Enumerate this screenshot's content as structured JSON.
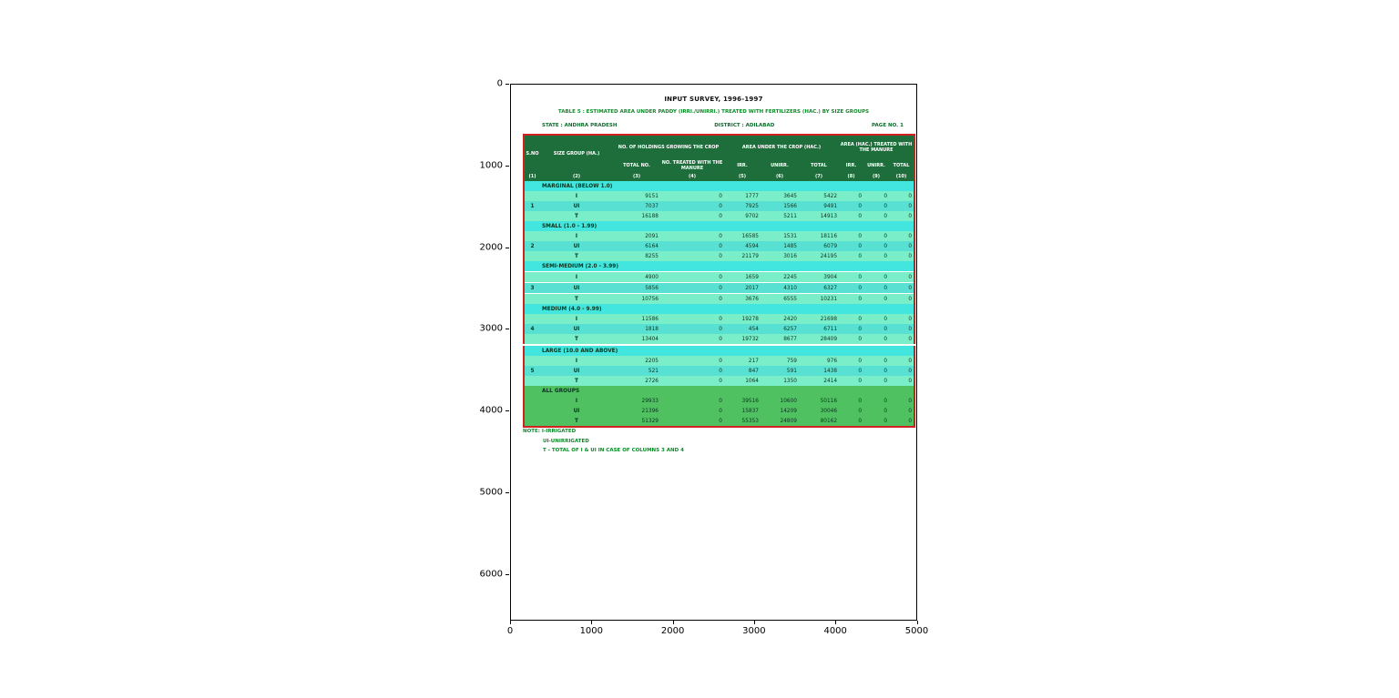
{
  "figure": {
    "x_ticks": [
      "0",
      "1000",
      "2000",
      "3000",
      "4000",
      "5000"
    ],
    "y_ticks": [
      "0",
      "1000",
      "2000",
      "3000",
      "4000",
      "5000",
      "6000"
    ]
  },
  "document": {
    "title": "INPUT SURVEY, 1996-1997",
    "subtitle": "TABLE 5 : ESTIMATED AREA UNDER PADDY (IRRI./UNIRRI.) TREATED WITH FERTILIZERS (HAC.) BY SIZE GROUPS",
    "state_label": "STATE : ANDHRA PRADESH",
    "district_label": "DISTRICT : ADILABAD",
    "page_label": "PAGE NO. 1",
    "notes": [
      "NOTE: I-IRRIGATED",
      "UI-UNIRRIGATED",
      "T - TOTAL OF I & UI IN CASE OF COLUMNS 3 AND 4"
    ]
  },
  "table": {
    "header": {
      "sno": "S.NO",
      "size_group": "SIZE GROUP (HA.)",
      "holdings_group": "NO. OF HOLDINGS GROWING THE CROP",
      "total_no": "TOTAL NO.",
      "treated_no": "NO. TREATED WITH THE MANURE",
      "area_group": "AREA UNDER THE CROP (HAC.)",
      "fert_group": "AREA (HAC.) TREATED WITH THE MANURE",
      "irr": "IRR.",
      "unirr": "UNIRR.",
      "total": "TOTAL"
    },
    "column_numbers": [
      "(1)",
      "(2)",
      "(3)",
      "(4)",
      "(5)",
      "(6)",
      "(7)",
      "(8)",
      "(9)",
      "(10)"
    ],
    "groups": [
      {
        "sno": "1",
        "label": "MARGINAL (BELOW 1.0)",
        "rows": [
          {
            "label": "I",
            "values": [
              "9151",
              "0",
              "1777",
              "3645",
              "5422",
              "0",
              "0",
              "0"
            ]
          },
          {
            "label": "UI",
            "values": [
              "7037",
              "0",
              "7925",
              "1566",
              "9491",
              "0",
              "0",
              "0"
            ]
          },
          {
            "label": "T",
            "values": [
              "16188",
              "0",
              "9702",
              "5211",
              "14913",
              "0",
              "0",
              "0"
            ]
          }
        ]
      },
      {
        "sno": "2",
        "label": "SMALL (1.0 - 1.99)",
        "rows": [
          {
            "label": "I",
            "values": [
              "2091",
              "0",
              "16585",
              "1531",
              "18116",
              "0",
              "0",
              "0"
            ]
          },
          {
            "label": "UI",
            "values": [
              "6164",
              "0",
              "4594",
              "1485",
              "6079",
              "0",
              "0",
              "0"
            ]
          },
          {
            "label": "T",
            "values": [
              "8255",
              "0",
              "21179",
              "3016",
              "24195",
              "0",
              "0",
              "0"
            ]
          }
        ]
      },
      {
        "sno": "3",
        "label": "SEMI-MEDIUM (2.0 - 3.99)",
        "rows": [
          {
            "label": "I",
            "values": [
              "4900",
              "0",
              "1659",
              "2245",
              "3904",
              "0",
              "0",
              "0"
            ]
          },
          {
            "label": "UI",
            "values": [
              "5856",
              "0",
              "2017",
              "4310",
              "6327",
              "0",
              "0",
              "0"
            ]
          },
          {
            "label": "T",
            "values": [
              "10756",
              "0",
              "3676",
              "6555",
              "10231",
              "0",
              "0",
              "0"
            ]
          }
        ]
      },
      {
        "sno": "4",
        "label": "MEDIUM (4.0 - 9.99)",
        "rows": [
          {
            "label": "I",
            "values": [
              "11586",
              "0",
              "19278",
              "2420",
              "21698",
              "0",
              "0",
              "0"
            ]
          },
          {
            "label": "UI",
            "values": [
              "1818",
              "0",
              "454",
              "6257",
              "6711",
              "0",
              "0",
              "0"
            ]
          },
          {
            "label": "T",
            "values": [
              "13404",
              "0",
              "19732",
              "8677",
              "28409",
              "0",
              "0",
              "0"
            ]
          }
        ]
      },
      {
        "sno": "5",
        "label": "LARGE (10.0 AND ABOVE)",
        "rows": [
          {
            "label": "I",
            "values": [
              "2205",
              "0",
              "217",
              "759",
              "976",
              "0",
              "0",
              "0"
            ]
          },
          {
            "label": "UI",
            "values": [
              "521",
              "0",
              "847",
              "591",
              "1438",
              "0",
              "0",
              "0"
            ]
          },
          {
            "label": "T",
            "values": [
              "2726",
              "0",
              "1064",
              "1350",
              "2414",
              "0",
              "0",
              "0"
            ]
          }
        ]
      },
      {
        "sno": "",
        "label": "ALL GROUPS",
        "rows": [
          {
            "label": "I",
            "values": [
              "29933",
              "0",
              "39516",
              "10600",
              "50116",
              "0",
              "0",
              "0"
            ]
          },
          {
            "label": "UI",
            "values": [
              "21396",
              "0",
              "15837",
              "14209",
              "30046",
              "0",
              "0",
              "0"
            ]
          },
          {
            "label": "T",
            "values": [
              "51329",
              "0",
              "55353",
              "24809",
              "80162",
              "0",
              "0",
              "0"
            ]
          }
        ]
      }
    ]
  },
  "colors": {
    "header_green": "#1e6e3c",
    "group_row_cyan": "#43e6de",
    "stripe_a": "#7aeec9",
    "stripe_b": "#58e1d3",
    "all_groups_green": "#50c160",
    "table_border_red": "#d02020",
    "note_green": "#0c8a28"
  }
}
